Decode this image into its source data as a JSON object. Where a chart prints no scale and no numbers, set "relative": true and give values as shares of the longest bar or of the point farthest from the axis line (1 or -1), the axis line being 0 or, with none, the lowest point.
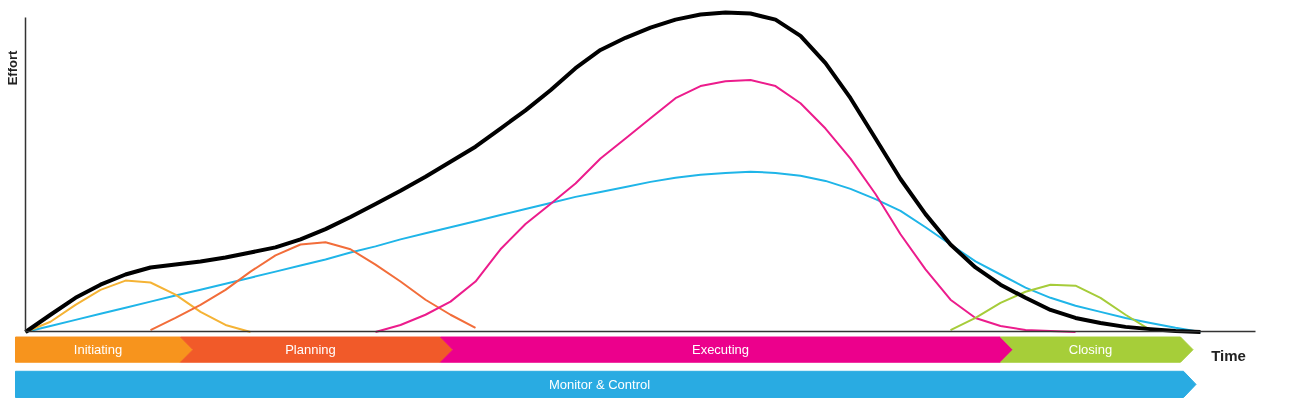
{
  "chart_data": {
    "type": "line",
    "relative": true,
    "xlabel": "Time",
    "ylabel": "Effort",
    "grid": false,
    "marker": "none",
    "line_style": "solid",
    "categories": [
      null,
      null,
      null,
      null,
      null,
      null,
      null,
      null,
      null,
      null,
      null,
      null,
      null,
      null,
      null,
      null,
      null,
      null,
      null,
      null,
      null,
      null,
      null,
      null,
      null,
      null,
      null,
      null,
      null,
      null,
      null,
      null,
      null,
      null,
      null,
      null,
      null,
      null,
      null,
      null,
      null,
      null,
      null,
      null,
      null,
      null,
      null,
      null
    ],
    "series": [
      {
        "color": "#1fb5e8",
        "values": [
          0,
          0.019,
          0.038,
          0.057,
          0.076,
          0.095,
          0.114,
          0.132,
          0.151,
          0.17,
          0.189,
          0.208,
          0.227,
          0.249,
          0.268,
          0.29,
          0.309,
          0.328,
          0.347,
          0.366,
          0.385,
          0.404,
          0.423,
          0.438,
          0.454,
          0.47,
          0.483,
          0.492,
          0.498,
          0.502,
          0.498,
          0.489,
          0.473,
          0.448,
          0.416,
          0.379,
          0.328,
          0.274,
          0.221,
          0.18,
          0.139,
          0.107,
          0.082,
          0.063,
          0.044,
          0.028,
          0.013,
          0
        ]
      },
      {
        "color": "#f5b335",
        "values": [
          0,
          0.032,
          0.085,
          0.132,
          0.161,
          0.155,
          0.117,
          0.063,
          0.022,
          0,
          null,
          null,
          null,
          null,
          null,
          null,
          null,
          null,
          null,
          null,
          null,
          null,
          null,
          null,
          null,
          null,
          null,
          null,
          null,
          null,
          null,
          null,
          null,
          null,
          null,
          null,
          null,
          null,
          null,
          null,
          null,
          null,
          null,
          null,
          null,
          null,
          null,
          null
        ]
      },
      {
        "color": "#f26d3a",
        "values": [
          null,
          null,
          null,
          null,
          null,
          0.006,
          0.044,
          0.085,
          0.132,
          0.189,
          0.24,
          0.274,
          0.281,
          0.259,
          0.211,
          0.158,
          0.101,
          0.054,
          0.013,
          null,
          null,
          null,
          null,
          null,
          null,
          null,
          null,
          null,
          null,
          null,
          null,
          null,
          null,
          null,
          null,
          null,
          null,
          null,
          null,
          null,
          null,
          null,
          null,
          null,
          null,
          null,
          null,
          null
        ]
      },
      {
        "color": "#ec1c8c",
        "values": [
          null,
          null,
          null,
          null,
          null,
          null,
          null,
          null,
          null,
          null,
          null,
          null,
          null,
          null,
          0,
          0.022,
          0.054,
          0.095,
          0.158,
          0.259,
          0.338,
          0.401,
          0.465,
          0.543,
          0.606,
          0.669,
          0.732,
          0.77,
          0.785,
          0.789,
          0.77,
          0.716,
          0.637,
          0.543,
          0.432,
          0.306,
          0.196,
          0.101,
          0.044,
          0.019,
          0.006,
          0.003,
          0,
          null,
          null,
          null,
          null,
          null
        ]
      },
      {
        "color": "#a6cc3a",
        "values": [
          null,
          null,
          null,
          null,
          null,
          null,
          null,
          null,
          null,
          null,
          null,
          null,
          null,
          null,
          null,
          null,
          null,
          null,
          null,
          null,
          null,
          null,
          null,
          null,
          null,
          null,
          null,
          null,
          null,
          null,
          null,
          null,
          null,
          null,
          null,
          null,
          null,
          0.006,
          0.044,
          0.091,
          0.126,
          0.148,
          0.145,
          0.107,
          0.054,
          0.006,
          null,
          null
        ]
      },
      {
        "color": "#000000",
        "values": [
          0,
          0.054,
          0.107,
          0.148,
          0.18,
          0.202,
          0.211,
          0.221,
          0.233,
          0.249,
          0.265,
          0.29,
          0.322,
          0.36,
          0.401,
          0.442,
          0.486,
          0.533,
          0.58,
          0.637,
          0.694,
          0.757,
          0.826,
          0.883,
          0.921,
          0.953,
          0.978,
          0.994,
          1.0,
          0.997,
          0.978,
          0.927,
          0.842,
          0.732,
          0.606,
          0.479,
          0.369,
          0.274,
          0.202,
          0.148,
          0.107,
          0.069,
          0.044,
          0.028,
          0.016,
          0.009,
          0.003,
          0
        ]
      }
    ],
    "annotations": [
      "Initiating",
      "Planning",
      "Executing",
      "Closing",
      "Monitor & Control"
    ]
  }
}
